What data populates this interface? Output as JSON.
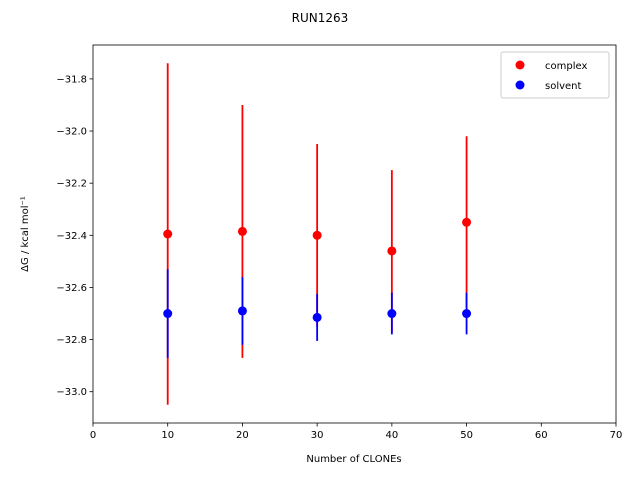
{
  "chart_data": {
    "type": "scatter",
    "title": "RUN1263",
    "xlabel": "Number of CLONEs",
    "ylabel": "ΔG / kcal mol⁻¹",
    "xlim": [
      0,
      70
    ],
    "ylim": [
      -33.12,
      -31.67
    ],
    "xticks": [
      0,
      10,
      20,
      30,
      40,
      50,
      60,
      70
    ],
    "yticks": [
      -33.0,
      -32.8,
      -32.6,
      -32.4,
      -32.2,
      -32.0,
      -31.8
    ],
    "ytick_labels": [
      "−33.0",
      "−32.8",
      "−32.6",
      "−32.4",
      "−32.2",
      "−32.0",
      "−31.8"
    ],
    "grid": false,
    "legend_position": "top-right",
    "series": [
      {
        "name": "complex",
        "color": "#ff0000",
        "x": [
          10,
          20,
          30,
          40,
          50
        ],
        "y": [
          -32.395,
          -32.385,
          -32.4,
          -32.46,
          -32.35
        ],
        "yerr": [
          0.655,
          0.485,
          0.35,
          0.31,
          0.33
        ]
      },
      {
        "name": "solvent",
        "color": "#0000ff",
        "x": [
          10,
          20,
          30,
          40,
          50
        ],
        "y": [
          -32.7,
          -32.69,
          -32.715,
          -32.7,
          -32.7
        ],
        "yerr": [
          0.17,
          0.13,
          0.09,
          0.08,
          0.08
        ]
      }
    ]
  }
}
